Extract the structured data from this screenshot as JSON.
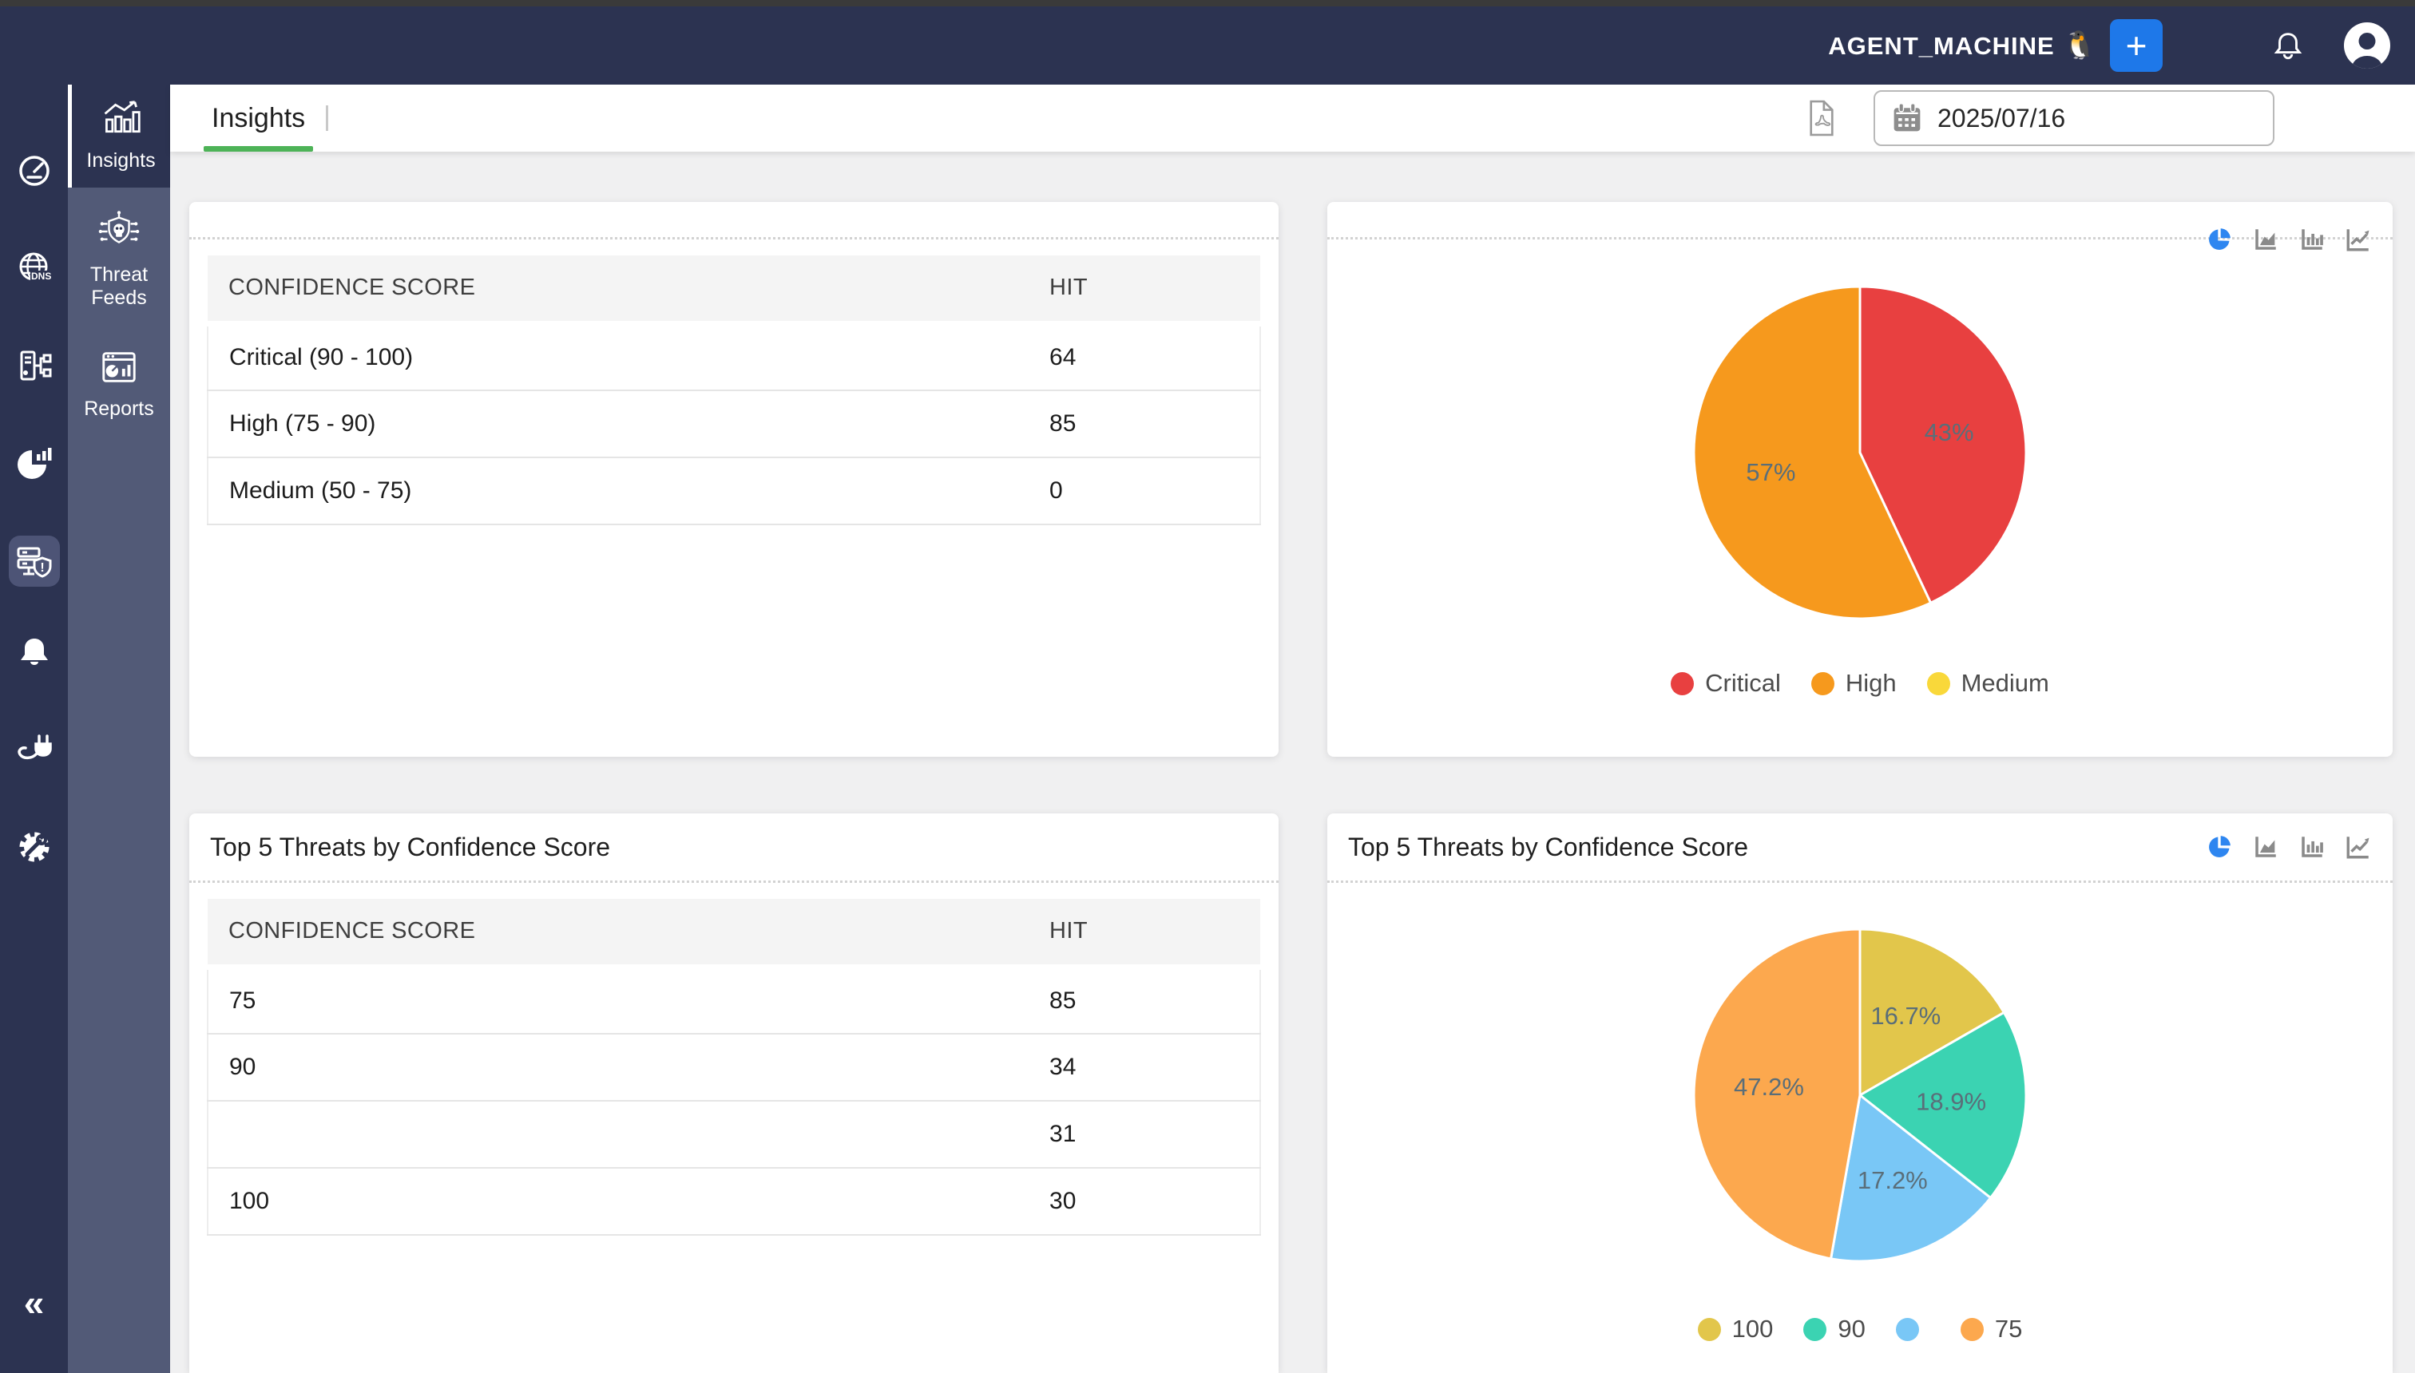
{
  "topbar": {
    "machine_label": "AGENT_MACHINE",
    "machine_emoji": "🐧",
    "add_button": "+"
  },
  "sidebar": {
    "rail_icons": [
      "speedometer",
      "globe-dns",
      "server-tree",
      "pie-chart",
      "server-shield-alert",
      "bell",
      "plug",
      "settings-gear",
      "collapse-chevrons"
    ],
    "collapse_glyph": "«",
    "nav": [
      {
        "label": "Insights",
        "selected": true
      },
      {
        "label": "Threat Feeds",
        "selected": false
      },
      {
        "label": "Reports",
        "selected": false
      }
    ]
  },
  "tabbar": {
    "tab": "Insights",
    "date": "2025/07/16"
  },
  "colors": {
    "navy": "#2c3351",
    "sidebar": "#525a77",
    "accent_green": "#4db357",
    "accent_blue": "#1e78e9",
    "critical_red": "#e84040",
    "high_orange": "#f6991d",
    "medium_yellow": "#f9d83a"
  },
  "cards": {
    "confidence_table": {
      "header": [
        "CONFIDENCE SCORE",
        "HIT"
      ],
      "rows": [
        [
          "Critical (90 - 100)",
          "64"
        ],
        [
          "High (75 - 90)",
          "85"
        ],
        [
          "Medium (50 - 75)",
          "0"
        ]
      ]
    },
    "confidence_pie": {
      "slices": [
        {
          "label": "Critical",
          "pct": 43,
          "display": "43%",
          "color": "#e84040"
        },
        {
          "label": "High",
          "pct": 57,
          "display": "57%",
          "color": "#f6991d"
        },
        {
          "label": "Medium",
          "pct": 0,
          "display": "",
          "color": "#f9d83a"
        }
      ]
    },
    "top5_table": {
      "title": "Top 5 Threats by Confidence Score",
      "header": [
        "CONFIDENCE SCORE",
        "HIT"
      ],
      "rows": [
        [
          "75",
          "85"
        ],
        [
          "90",
          "34"
        ],
        [
          "",
          "31"
        ],
        [
          "100",
          "30"
        ]
      ]
    },
    "top5_pie": {
      "title": "Top 5 Threats by Confidence Score",
      "slices": [
        {
          "label": "100",
          "pct": 16.7,
          "display": "16.7%",
          "color": "#e2c64b"
        },
        {
          "label": "90",
          "pct": 18.9,
          "display": "18.9%",
          "color": "#3bd3b2"
        },
        {
          "label": "",
          "pct": 17.2,
          "display": "17.2%",
          "color": "#79c7f6"
        },
        {
          "label": "75",
          "pct": 47.2,
          "display": "47.2%",
          "color": "#fca84e"
        }
      ]
    }
  },
  "chart_data": [
    {
      "type": "pie",
      "title": "",
      "labels": [
        "Critical",
        "High",
        "Medium"
      ],
      "values": [
        43,
        57,
        0
      ],
      "unit": "%",
      "colors": [
        "#e84040",
        "#f6991d",
        "#f9d83a"
      ],
      "legend_position": "bottom"
    },
    {
      "type": "pie",
      "title": "Top 5 Threats by Confidence Score",
      "labels": [
        "100",
        "90",
        "",
        "75"
      ],
      "values": [
        16.7,
        18.9,
        17.2,
        47.2
      ],
      "unit": "%",
      "colors": [
        "#e2c64b",
        "#3bd3b2",
        "#79c7f6",
        "#fca84e"
      ],
      "legend_position": "bottom"
    }
  ]
}
